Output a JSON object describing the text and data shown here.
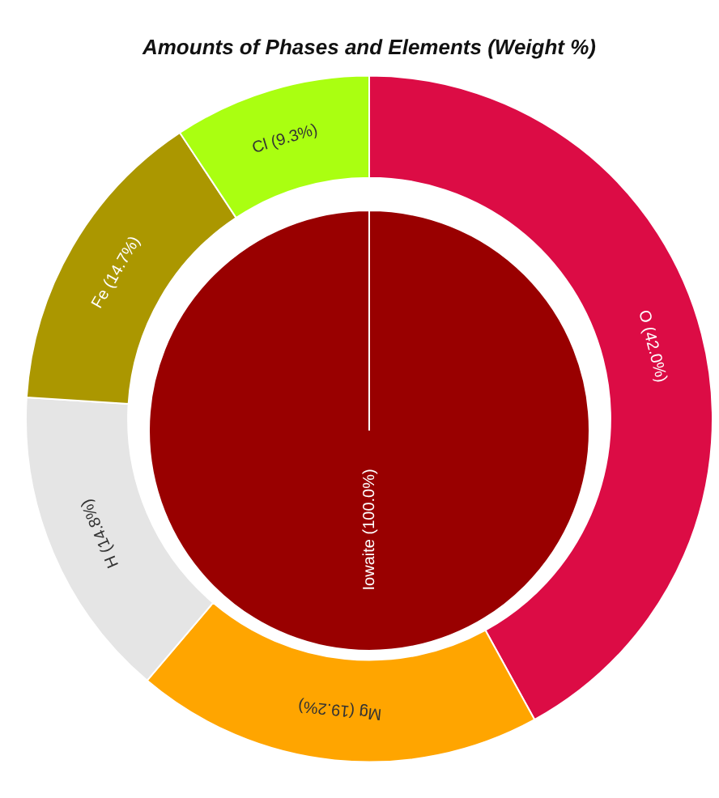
{
  "chart_data": [
    {
      "type": "donut",
      "title": "Amounts of Phases and Elements (Weight %)",
      "categories": [
        "O",
        "Mg",
        "H",
        "Fe",
        "Cl"
      ],
      "values": [
        42.0,
        19.2,
        14.8,
        14.7,
        9.3
      ],
      "colors": [
        "#dc0c45",
        "#ffa500",
        "#e5e5e5",
        "#ab9700",
        "#aaff11"
      ],
      "value_labels": [
        "(42.0%)",
        "(19.2%)",
        "(14.8%)",
        "(14.7%)",
        "(9.3%)"
      ],
      "legend": false
    },
    {
      "type": "pie",
      "categories": [
        "Iowaite"
      ],
      "values": [
        100.0
      ],
      "colors": [
        "#990000"
      ],
      "value_labels": [
        "(100.0%)"
      ],
      "legend": false
    }
  ]
}
